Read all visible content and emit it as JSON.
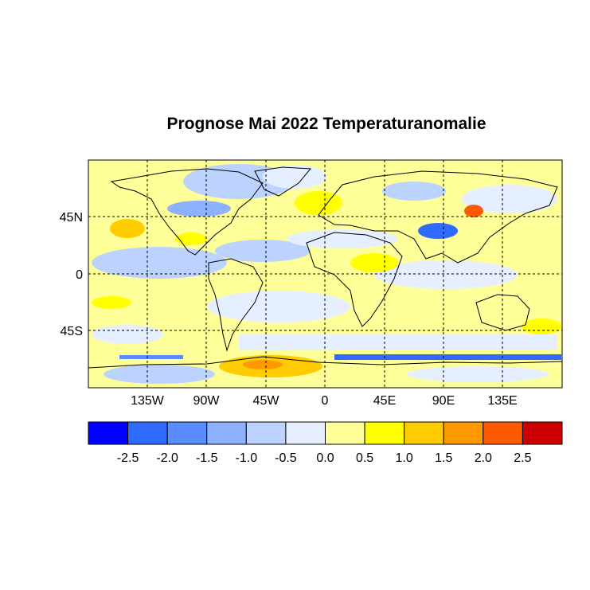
{
  "title": "Prognose Mai 2022 Temperaturanomalie",
  "map": {
    "projection": "equirectangular",
    "lon_range": [
      -180,
      180
    ],
    "lat_range": [
      -90,
      90
    ],
    "grid": "dashed",
    "lat_labels": [
      "45N",
      "0",
      "45S"
    ],
    "lon_labels": [
      "135W",
      "90W",
      "45W",
      "0",
      "45E",
      "90E",
      "135E"
    ]
  },
  "colorbar": {
    "colors": [
      "#0000ff",
      "#2f6bff",
      "#5b8cff",
      "#8db0ff",
      "#bcd3ff",
      "#e6efff",
      "#ffff99",
      "#ffff00",
      "#ffcc00",
      "#ff9900",
      "#ff5a00",
      "#cc0000"
    ],
    "labels": [
      "-2.5",
      "-2.0",
      "-1.5",
      "-1.0",
      "-0.5",
      "0.0",
      "0.5",
      "1.0",
      "1.5",
      "2.0",
      "2.5"
    ]
  }
}
